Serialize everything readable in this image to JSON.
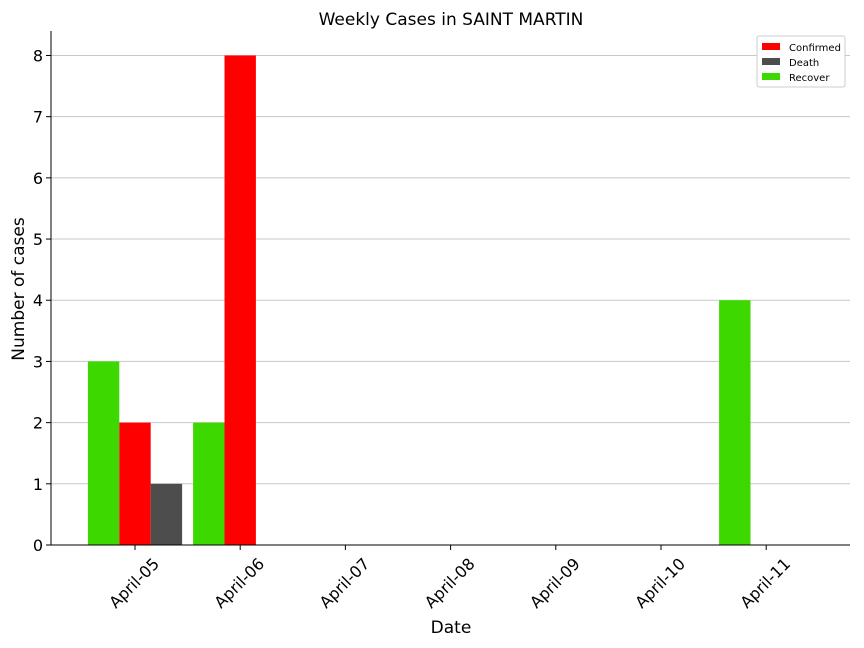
{
  "chart_data": {
    "type": "bar",
    "title": "Weekly Cases in SAINT MARTIN",
    "xlabel": "Date",
    "ylabel": "Number of cases",
    "categories": [
      "April-05",
      "April-06",
      "April-07",
      "April-08",
      "April-09",
      "April-10",
      "April-11"
    ],
    "series": [
      {
        "name": "Recover",
        "color": "#3dd800",
        "values": [
          3,
          2,
          0,
          0,
          0,
          0,
          4
        ]
      },
      {
        "name": "Confirmed",
        "color": "#ff0000",
        "values": [
          2,
          8,
          0,
          0,
          0,
          0,
          0
        ]
      },
      {
        "name": "Death",
        "color": "#4d4d4d",
        "values": [
          1,
          0,
          0,
          0,
          0,
          0,
          0
        ]
      }
    ],
    "legend_order": [
      "Confirmed",
      "Death",
      "Recover"
    ],
    "ylim": [
      0,
      8.4
    ],
    "yticks": [
      0,
      1,
      2,
      3,
      4,
      5,
      6,
      7,
      8
    ],
    "grid": "horizontal",
    "legend_position": "top-right",
    "tick_rotation": -45
  }
}
